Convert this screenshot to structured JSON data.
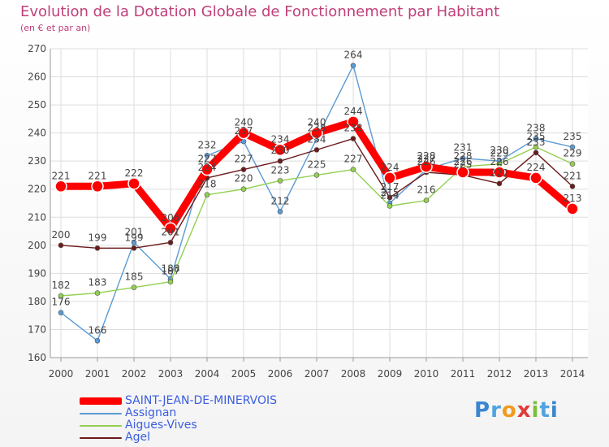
{
  "header": {
    "title": "Evolution de la Dotation Globale de Fonctionnement par Habitant",
    "subtitle": "(en € et par an)"
  },
  "logo": {
    "text": "Proxiti"
  },
  "colors": {
    "background": "#ffffff",
    "axis": "#999999",
    "grid": "#dddddd",
    "text": "#444444",
    "title": "#c0407a",
    "legend_text": "#3b5ee0"
  },
  "chart_data": {
    "type": "line",
    "title": "Evolution de la Dotation Globale de Fonctionnement par Habitant",
    "subtitle": "(en € et par an)",
    "xlabel": "",
    "ylabel": "",
    "x": [
      "2000",
      "2001",
      "2002",
      "2003",
      "2004",
      "2005",
      "2006",
      "2007",
      "2008",
      "2009",
      "2010",
      "2011",
      "2012",
      "2013",
      "2014"
    ],
    "ylim": [
      160,
      270
    ],
    "yticks": [
      160,
      170,
      180,
      190,
      200,
      210,
      220,
      230,
      240,
      250,
      260,
      270
    ],
    "grid": true,
    "legend_position": "bottom-left",
    "series": [
      {
        "name": "SAINT-JEAN-DE-MINERVOIS",
        "color": "#ff0000",
        "emphasis": true,
        "values": [
          221,
          221,
          222,
          206,
          227,
          240,
          234,
          240,
          244,
          224,
          228,
          226,
          226,
          224,
          213
        ],
        "labels": [
          "221",
          "221",
          "222",
          "206",
          "227",
          "240",
          "234",
          "240",
          "244",
          "224",
          "228",
          "226",
          "226",
          "224",
          "213"
        ]
      },
      {
        "name": "Assignan",
        "color": "#5b9bd5",
        "emphasis": false,
        "values": [
          176,
          166,
          201,
          188,
          232,
          237,
          212,
          238,
          264,
          215,
          227,
          231,
          230,
          238,
          235
        ],
        "labels": [
          "176",
          "166",
          "201",
          "188",
          "232",
          "237",
          "212",
          "238",
          "264",
          "215",
          "227",
          "231",
          "230",
          "238",
          "235"
        ]
      },
      {
        "name": "Aigues-Vives",
        "color": "#92d050",
        "emphasis": false,
        "values": [
          182,
          183,
          185,
          187,
          218,
          220,
          223,
          225,
          227,
          214,
          216,
          228,
          229,
          235,
          229
        ],
        "labels": [
          "182",
          "183",
          "185",
          "187",
          "218",
          "220",
          "223",
          "225",
          "227",
          "214",
          "216",
          "228",
          "229",
          "235",
          "229"
        ]
      },
      {
        "name": "Agel",
        "color": "#6b1a1a",
        "emphasis": false,
        "values": [
          200,
          199,
          199,
          201,
          224,
          227,
          230,
          234,
          238,
          217,
          226,
          225,
          222,
          233,
          221
        ],
        "labels": [
          "200",
          "199",
          "199",
          "201",
          "224",
          "227",
          "230",
          "234",
          "238",
          "217",
          "226",
          "225",
          "222",
          "233",
          "221"
        ]
      }
    ]
  }
}
